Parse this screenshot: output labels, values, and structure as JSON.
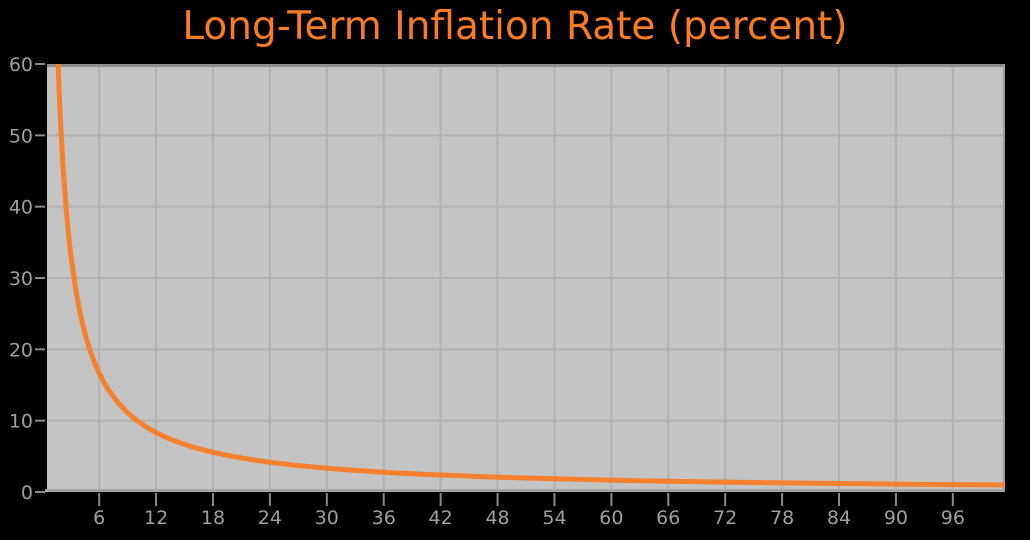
{
  "title": {
    "text": "Long-Term Inflation Rate (percent)",
    "color": "#fa7c22"
  },
  "colors": {
    "background": "#000000",
    "plot_bg": "#c4c4c4",
    "gridline": "#b1b1b1",
    "border_top": "#8e8e8e",
    "border_bottom": "#a4a4a4",
    "border_right": "#9c9c9c",
    "tick_mark": "#8a8a8a",
    "tick_label": "#9e9e9e",
    "curve": "#f5802e"
  },
  "chart_data": {
    "type": "line",
    "title": "Long-Term Inflation Rate (percent)",
    "xlabel": "",
    "ylabel": "",
    "xlim": [
      0.5,
      101.5
    ],
    "ylim": [
      0,
      60
    ],
    "x_ticks": [
      6,
      12,
      18,
      24,
      30,
      36,
      42,
      48,
      54,
      60,
      66,
      72,
      78,
      84,
      90,
      96
    ],
    "y_ticks": [
      0,
      10,
      20,
      30,
      40,
      50,
      60
    ],
    "grid": true,
    "legend": "none",
    "series": [
      {
        "name": "long-term inflation rate",
        "color": "#f5802e",
        "points": [
          [
            1,
            100
          ],
          [
            1.2,
            83.33
          ],
          [
            1.5,
            66.67
          ],
          [
            1.8,
            55.56
          ],
          [
            2,
            50
          ],
          [
            2.2,
            45.45
          ],
          [
            2.5,
            40
          ],
          [
            2.8,
            35.71
          ],
          [
            3,
            33.33
          ],
          [
            3.5,
            28.57
          ],
          [
            4,
            25
          ],
          [
            4.5,
            22.22
          ],
          [
            5,
            20
          ],
          [
            5.5,
            18.18
          ],
          [
            6,
            16.67
          ],
          [
            6.5,
            15.38
          ],
          [
            7,
            14.29
          ],
          [
            8,
            12.5
          ],
          [
            9,
            11.11
          ],
          [
            10,
            10
          ],
          [
            11,
            9.09
          ],
          [
            12,
            8.33
          ],
          [
            13,
            7.69
          ],
          [
            14,
            7.14
          ],
          [
            16,
            6.25
          ],
          [
            18,
            5.56
          ],
          [
            20,
            5
          ],
          [
            22,
            4.55
          ],
          [
            24,
            4.17
          ],
          [
            27,
            3.7
          ],
          [
            30,
            3.33
          ],
          [
            33,
            3.03
          ],
          [
            36,
            2.78
          ],
          [
            40,
            2.5
          ],
          [
            44,
            2.27
          ],
          [
            48,
            2.08
          ],
          [
            52,
            1.92
          ],
          [
            56,
            1.79
          ],
          [
            60,
            1.67
          ],
          [
            66,
            1.52
          ],
          [
            72,
            1.39
          ],
          [
            78,
            1.28
          ],
          [
            84,
            1.19
          ],
          [
            90,
            1.11
          ],
          [
            96,
            1.04
          ],
          [
            101.5,
            0.99
          ]
        ]
      }
    ]
  }
}
